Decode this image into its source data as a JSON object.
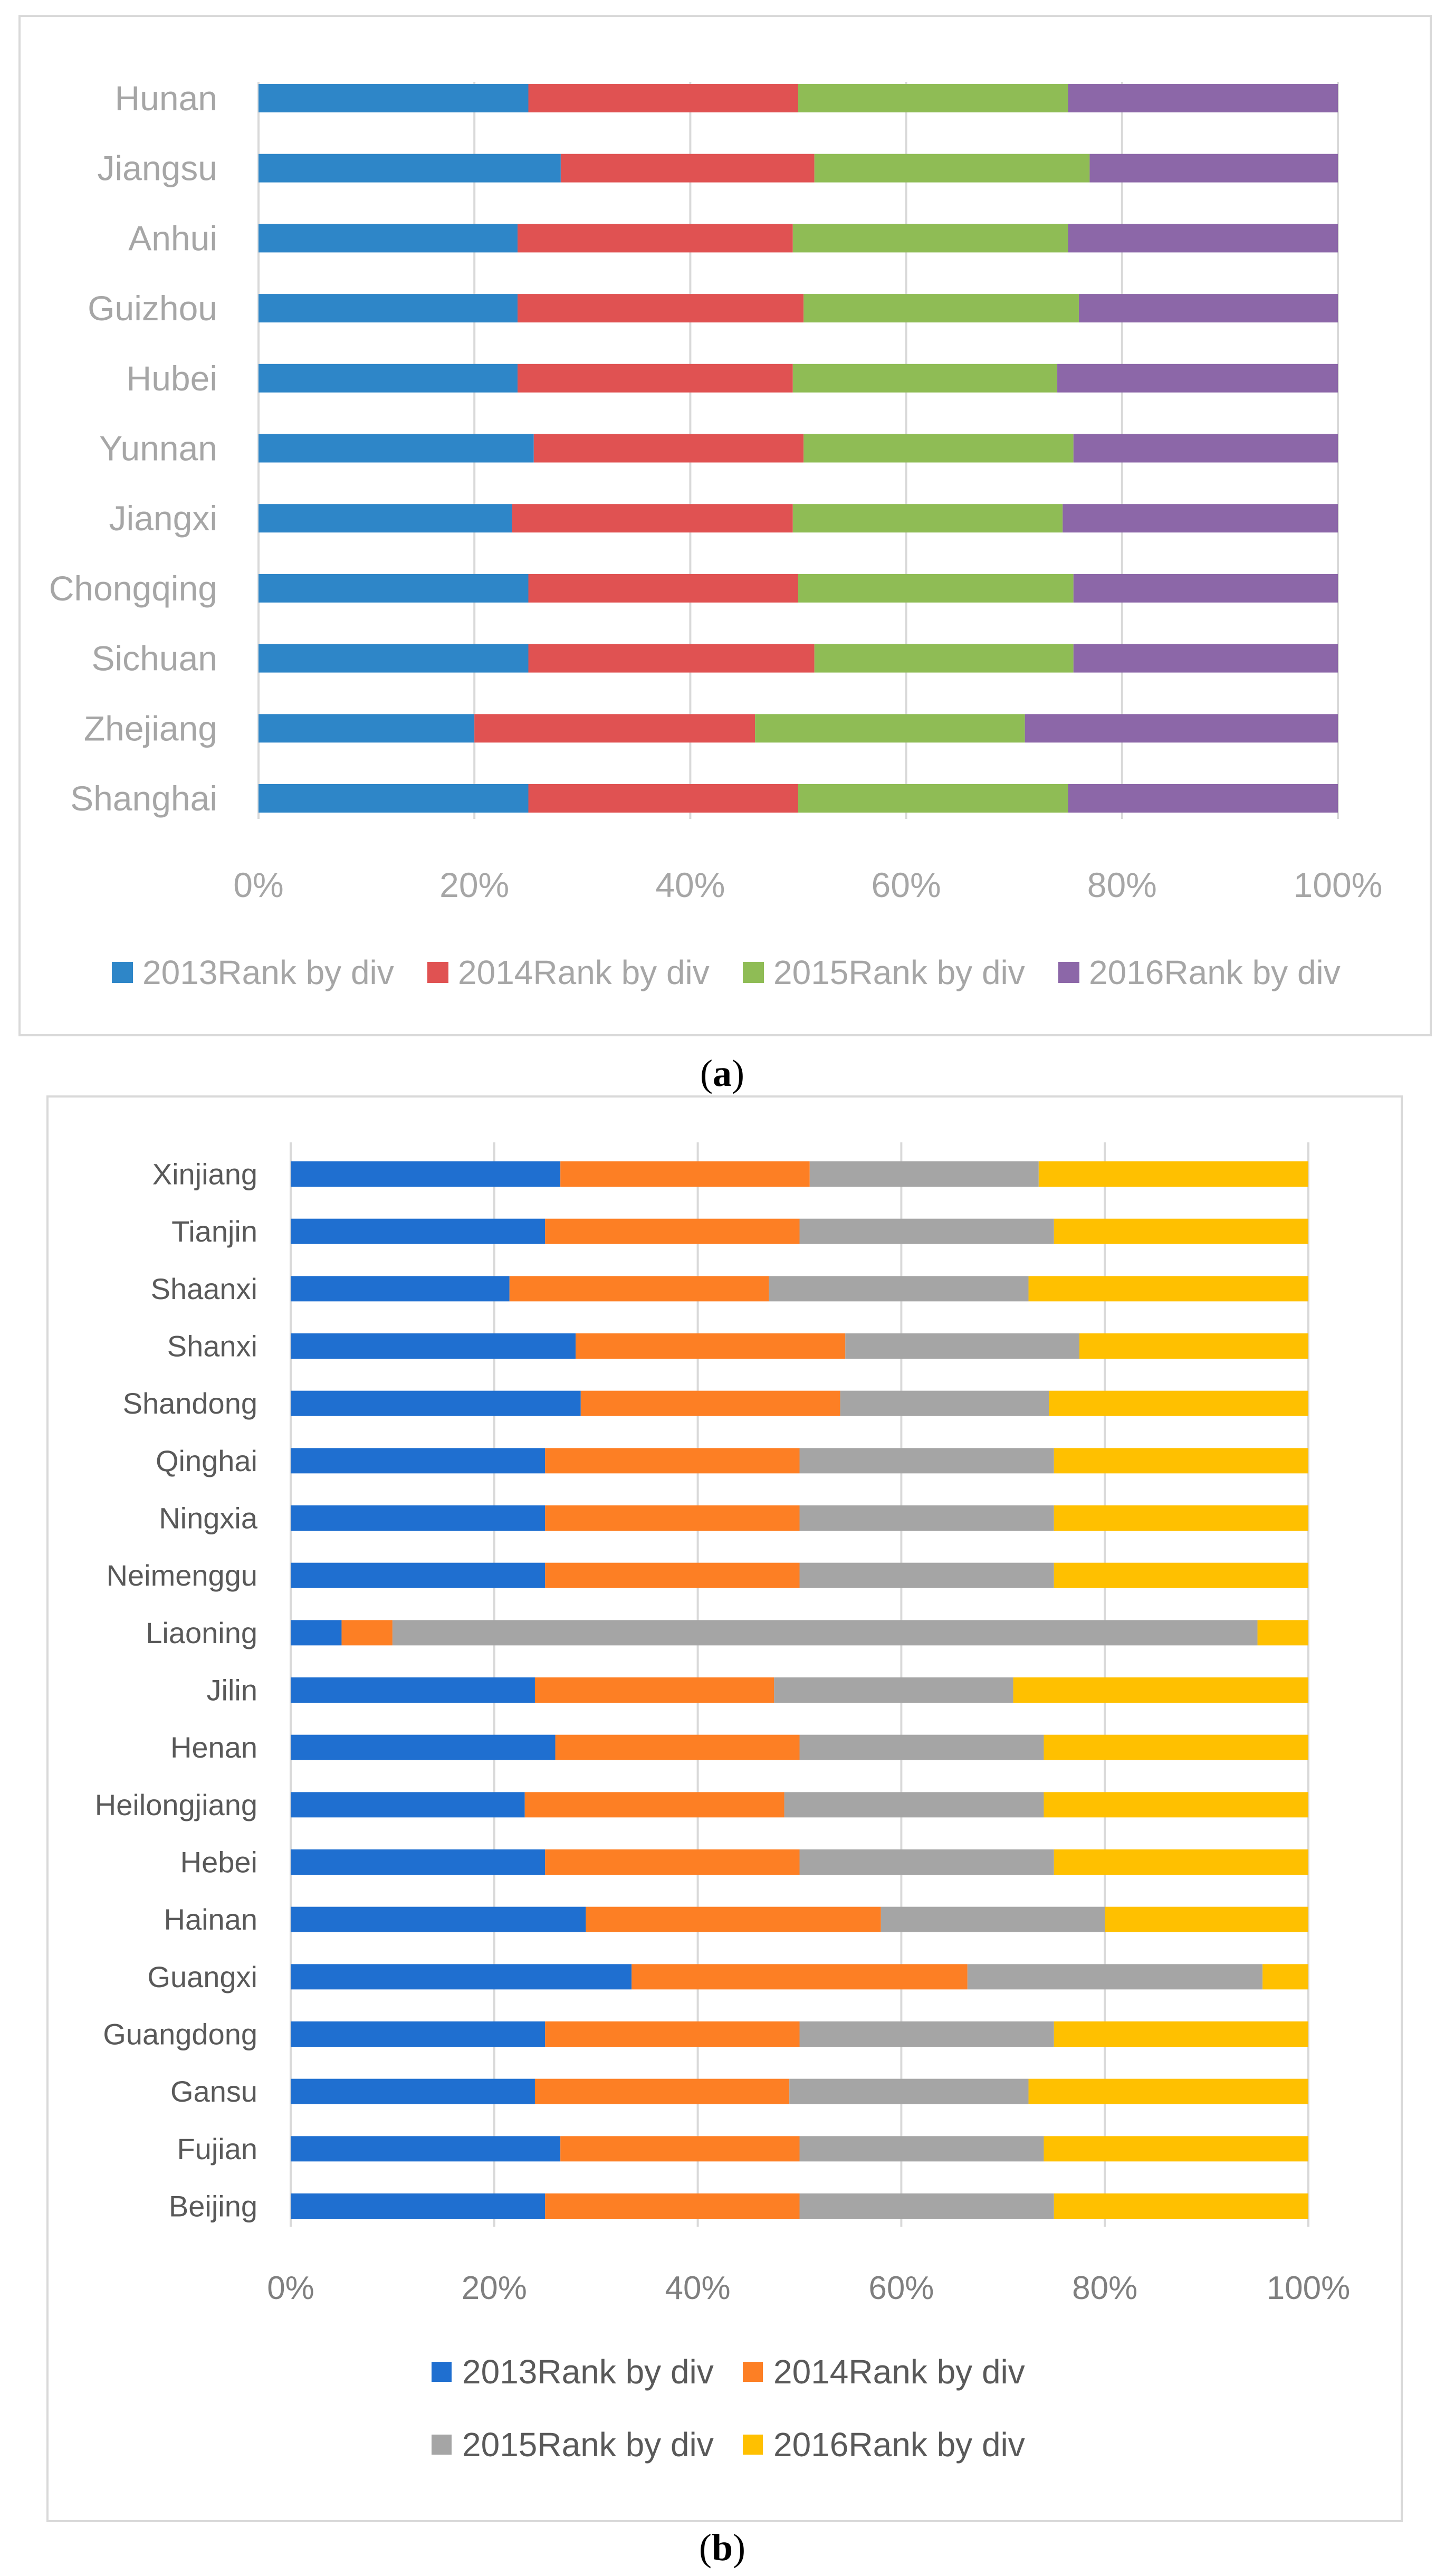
{
  "chart_data": [
    {
      "type": "bar",
      "orientation": "horizontal",
      "stacked": "percent",
      "panel_label": "a",
      "colors": [
        "#2e86c8",
        "#e05252",
        "#8fbc55",
        "#8c67a8"
      ],
      "categories": [
        "Hunan",
        "Jiangsu",
        "Anhui",
        "Guizhou",
        "Hubei",
        "Yunnan",
        "Jiangxi",
        "Chongqing",
        "Sichuan",
        "Zhejiang",
        "Shanghai"
      ],
      "series": [
        {
          "name": "2013Rank by div",
          "values": [
            25,
            28,
            24,
            24,
            24,
            25.5,
            23.5,
            25,
            25,
            20,
            25
          ]
        },
        {
          "name": "2014Rank by div",
          "values": [
            25,
            23.5,
            25.5,
            26.5,
            25.5,
            25,
            26,
            25,
            26.5,
            26,
            25
          ]
        },
        {
          "name": "2015Rank by div",
          "values": [
            25,
            25.5,
            25.5,
            25.5,
            24.5,
            25,
            25,
            25.5,
            24,
            25,
            25
          ]
        },
        {
          "name": "2016Rank by div",
          "values": [
            25,
            23,
            25,
            24,
            26,
            24.5,
            25.5,
            24.5,
            24.5,
            29,
            25
          ]
        }
      ],
      "xticks": [
        "0%",
        "20%",
        "40%",
        "60%",
        "80%",
        "100%"
      ],
      "xlim": [
        0,
        100
      ],
      "legend_position": "bottom"
    },
    {
      "type": "bar",
      "orientation": "horizontal",
      "stacked": "percent",
      "panel_label": "b",
      "colors": [
        "#1f6fd0",
        "#fd7f24",
        "#a5a5a5",
        "#ffc000"
      ],
      "categories": [
        "Xinjiang",
        "Tianjin",
        "Shaanxi",
        "Shanxi",
        "Shandong",
        "Qinghai",
        "Ningxia",
        "Neimenggu",
        "Liaoning",
        "Jilin",
        "Henan",
        "Heilongjiang",
        "Hebei",
        "Hainan",
        "Guangxi",
        "Guangdong",
        "Gansu",
        "Fujian",
        "Beijing"
      ],
      "series": [
        {
          "name": "2013Rank by div",
          "values": [
            26.5,
            25,
            21.5,
            28,
            28.5,
            25,
            25,
            25,
            5,
            24,
            26,
            23,
            25,
            29,
            33.5,
            25,
            24,
            26.5,
            25
          ]
        },
        {
          "name": "2014Rank by div",
          "values": [
            24.5,
            25,
            25.5,
            26.5,
            25.5,
            25,
            25,
            25,
            5,
            23.5,
            24,
            25.5,
            25,
            29,
            33,
            25,
            25,
            23.5,
            25
          ]
        },
        {
          "name": "2015Rank by div",
          "values": [
            22.5,
            25,
            25.5,
            23,
            20.5,
            25,
            25,
            25,
            85,
            23.5,
            24,
            25.5,
            25,
            22,
            29,
            25,
            23.5,
            24,
            25
          ]
        },
        {
          "name": "2016Rank by div",
          "values": [
            26.5,
            25,
            27.5,
            22.5,
            25.5,
            25,
            25,
            25,
            5,
            29,
            26,
            26,
            25,
            20,
            4.5,
            25,
            27.5,
            26,
            25
          ]
        }
      ],
      "xticks": [
        "0%",
        "20%",
        "40%",
        "60%",
        "80%",
        "100%"
      ],
      "xlim": [
        0,
        100
      ],
      "legend_position": "bottom"
    }
  ],
  "captions": {
    "a": {
      "open": "(",
      "letter": "a",
      "close": ")"
    },
    "b": {
      "open": "(",
      "letter": "b",
      "close": ")"
    }
  }
}
